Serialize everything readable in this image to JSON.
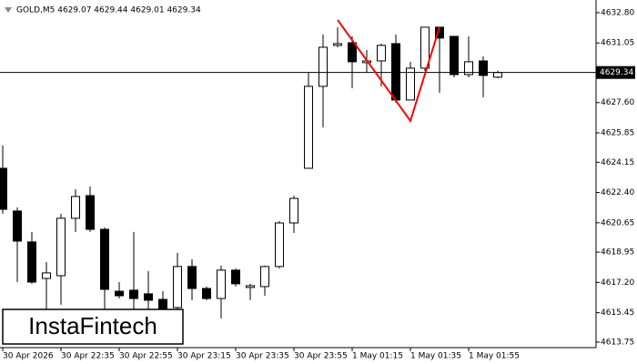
{
  "chart_data": {
    "type": "candlestick",
    "title": "GOLD,M5  4629.07 4629.44 4629.01 4629.34",
    "watermark": "InstaFintech",
    "categories": [
      "30 Apr 2026",
      null,
      null,
      null,
      "30 Apr 22:35",
      null,
      null,
      null,
      "30 Apr 22:55",
      null,
      null,
      null,
      "30 Apr 23:15",
      null,
      null,
      null,
      "30 Apr 23:35",
      null,
      null,
      null,
      "30 Apr 23:55",
      null,
      null,
      null,
      "1 May 01:15",
      null,
      null,
      null,
      "1 May 01:35",
      null,
      null,
      null,
      "1 May 01:55",
      null,
      null
    ],
    "open": [
      4623.8,
      4621.33,
      4619.54,
      4617.43,
      4617.59,
      4620.91,
      4622.22,
      4620.27,
      4616.69,
      4616.75,
      4616.54,
      4616.22,
      4615.75,
      4618.12,
      4616.85,
      4616.27,
      4617.91,
      4616.91,
      4616.96,
      4618.12,
      4620.64,
      4623.8,
      4628.54,
      4630.91,
      4631.06,
      4629.91,
      4630.01,
      4631.01,
      4627.75,
      4629.59,
      4631.96,
      4631.43,
      4629.22,
      4630.01,
      4629.07
    ],
    "high": [
      4625.12,
      4621.54,
      4620.12,
      4618.38,
      4621.17,
      4622.59,
      4622.75,
      4620.38,
      4617.22,
      4620.12,
      4617.85,
      4616.69,
      4618.91,
      4618.54,
      4616.96,
      4618.17,
      4618.0,
      4617.12,
      4618.17,
      4620.75,
      4622.22,
      4629.33,
      4631.54,
      4631.96,
      4631.43,
      4630.64,
      4631.01,
      4631.54,
      4629.96,
      4631.96,
      4631.96,
      4631.43,
      4631.43,
      4630.27,
      4629.44
    ],
    "low": [
      4621.17,
      4617.22,
      4617.12,
      4615.64,
      4615.91,
      4620.12,
      4620.12,
      4615.64,
      4616.27,
      4615.38,
      4615.38,
      4615.12,
      4615.64,
      4616.17,
      4616.17,
      4615.12,
      4616.96,
      4616.17,
      4616.43,
      4618.01,
      4620.06,
      4623.8,
      4626.17,
      4630.8,
      4628.43,
      4629.33,
      4628.54,
      4627.59,
      4627.75,
      4629.43,
      4628.17,
      4629.06,
      4629.06,
      4627.91,
      4629.01
    ],
    "close": [
      4621.43,
      4619.59,
      4617.22,
      4617.75,
      4620.91,
      4622.17,
      4620.27,
      4616.8,
      4616.43,
      4616.27,
      4616.17,
      4615.54,
      4618.12,
      4616.85,
      4616.27,
      4617.91,
      4617.12,
      4617.01,
      4618.12,
      4620.64,
      4622.06,
      4628.54,
      4630.8,
      4631.01,
      4629.96,
      4630.01,
      4630.91,
      4627.75,
      4629.59,
      4631.96,
      4631.33,
      4629.22,
      4629.96,
      4629.17,
      4629.34
    ],
    "up_color": "#ffffff",
    "down_color": "#000000",
    "current_price": 4629.34,
    "pattern": {
      "color": "#ff0000",
      "x": [
        23,
        28,
        30
      ],
      "values": [
        4632.38,
        4626.54,
        4631.96
      ]
    },
    "ylim": [
      4613.43,
      4633.27
    ],
    "yticks": [
      {
        "value": 4632.8,
        "label": "4632.80"
      },
      4631.05,
      {
        "value": 4627.6,
        "label": "4627.60"
      },
      4625.85,
      4624.15,
      {
        "value": 4622.4,
        "label": "4622.40"
      },
      4620.65,
      4618.95,
      {
        "value": 4617.2,
        "label": "4617.20"
      },
      4615.45,
      4613.75
    ]
  }
}
